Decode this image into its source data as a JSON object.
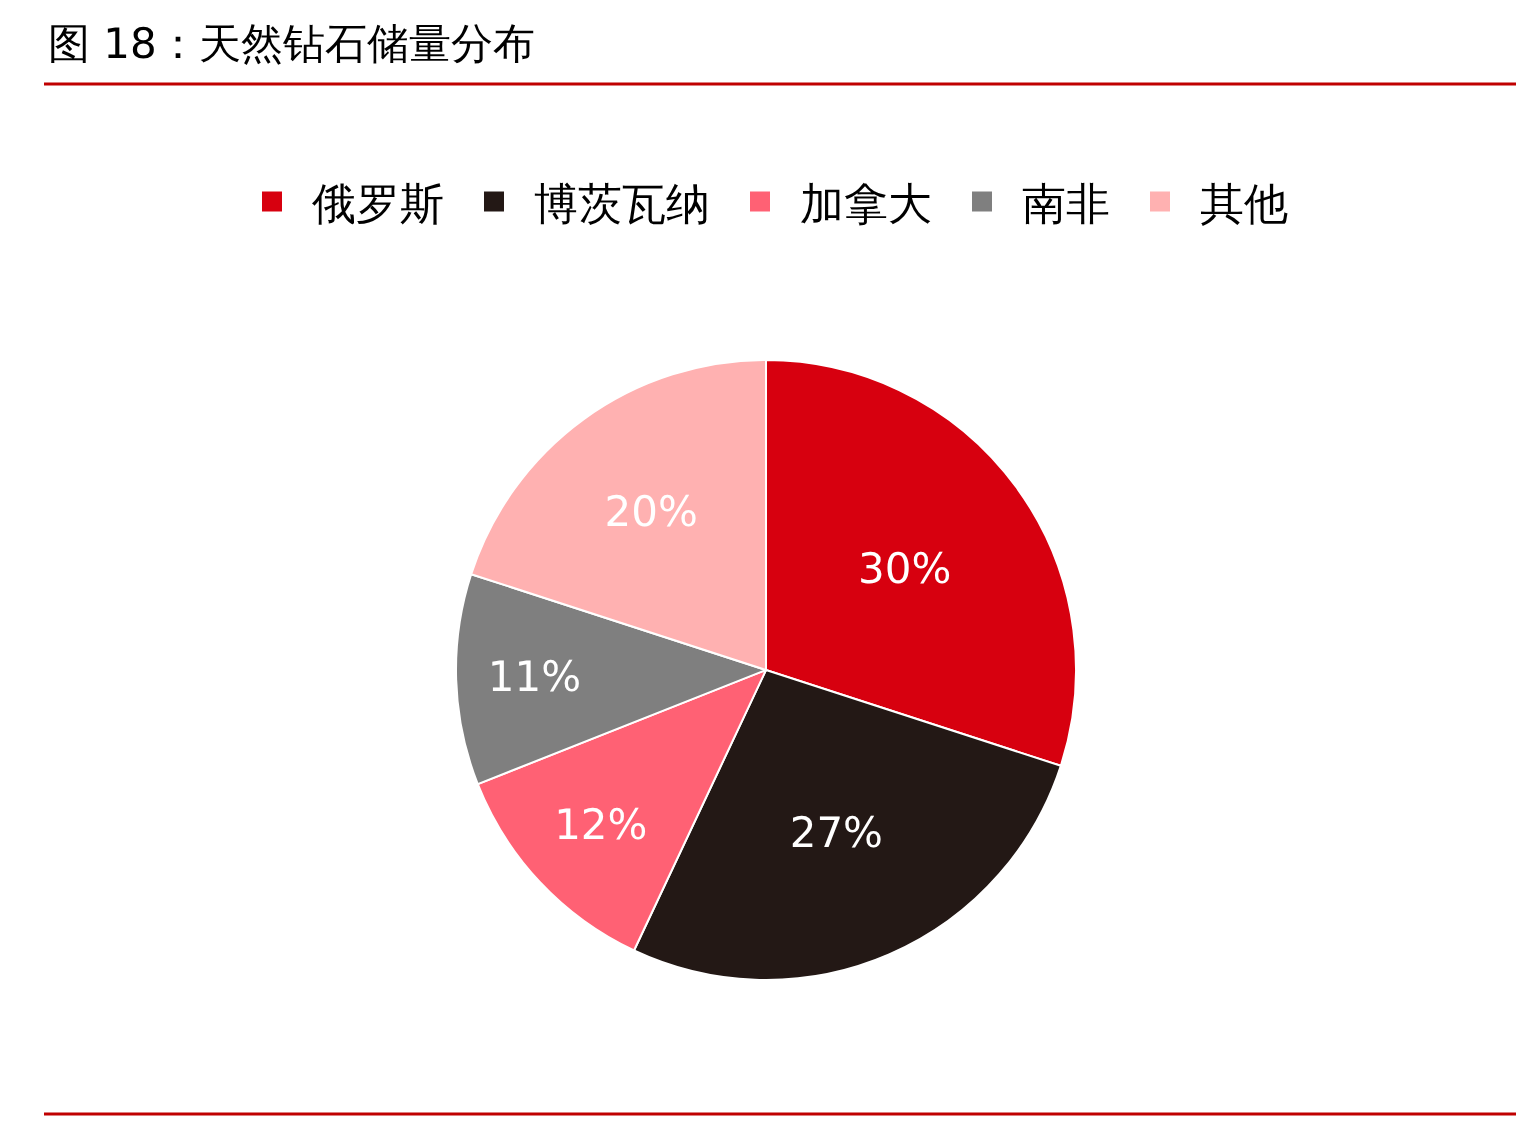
{
  "chart_data": {
    "type": "pie",
    "title": "图 18：天然钻石储量分布",
    "categories": [
      "俄罗斯",
      "博茨瓦纳",
      "加拿大",
      "南非",
      "其他"
    ],
    "values": [
      30,
      27,
      12,
      11,
      20
    ],
    "value_labels": [
      "30%",
      "27%",
      "12%",
      "11%",
      "20%"
    ],
    "colors": [
      "#d7000f",
      "#231815",
      "#ff6174",
      "#7f7f7f",
      "#ffb1b1"
    ],
    "legend": "top"
  }
}
